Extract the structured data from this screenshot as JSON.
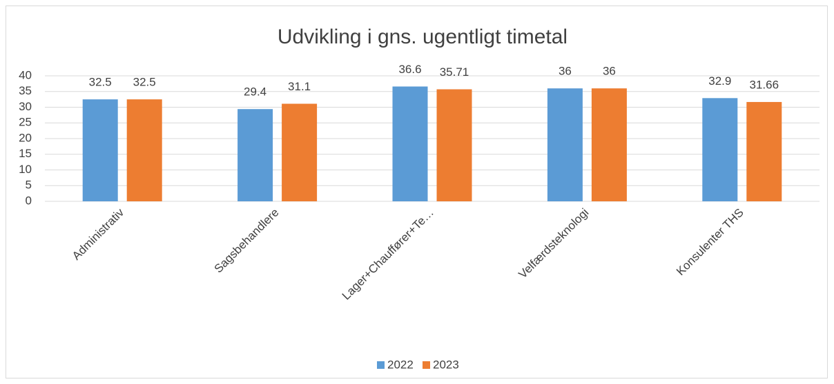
{
  "chart_data": {
    "type": "bar",
    "title": "Udvikling i gns. ugentligt timetal",
    "categories": [
      "Administrativ",
      "Sagsbehandlere",
      "Lager+Chauffører+Te…",
      "Velfærdsteknologi",
      "Konsulenter THS"
    ],
    "series": [
      {
        "name": "2022",
        "color": "#5b9bd5",
        "values": [
          32.5,
          29.4,
          36.6,
          36,
          32.9
        ]
      },
      {
        "name": "2023",
        "color": "#ed7d31",
        "values": [
          32.5,
          31.1,
          35.71,
          36,
          31.66
        ]
      }
    ],
    "ylim": [
      0,
      40
    ],
    "yticks": [
      0,
      5,
      10,
      15,
      20,
      25,
      30,
      35,
      40
    ],
    "grid": true,
    "legend": "bottom"
  }
}
